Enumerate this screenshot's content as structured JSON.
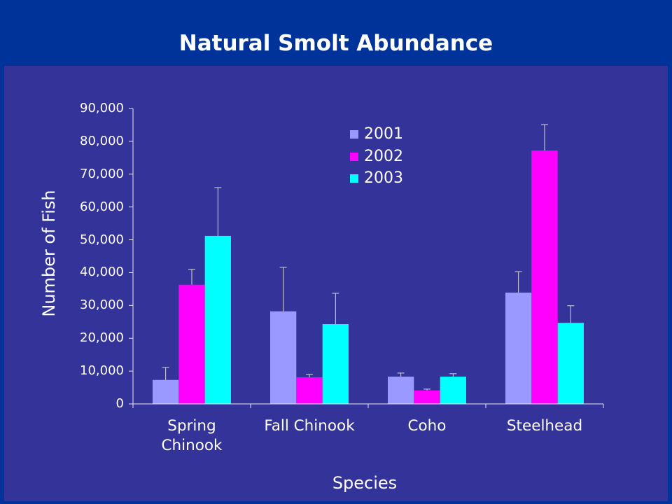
{
  "chart_data": {
    "type": "bar",
    "title": "Natural Smolt Abundance",
    "xlabel": "Species",
    "ylabel": "Number of Fish",
    "categories": [
      "Spring Chinook",
      "Fall Chinook",
      "Coho",
      "Steelhead"
    ],
    "series": [
      {
        "name": "2001",
        "color": "#9999FF",
        "values": [
          7300,
          28200,
          8300,
          33900
        ],
        "error_plus": [
          3800,
          13400,
          1100,
          6400
        ]
      },
      {
        "name": "2002",
        "color": "#FF00FF",
        "values": [
          36300,
          8100,
          4100,
          77200
        ],
        "error_plus": [
          4700,
          900,
          400,
          7900
        ]
      },
      {
        "name": "2003",
        "color": "#00FFFF",
        "values": [
          51200,
          24300,
          8300,
          24700
        ],
        "error_plus": [
          14700,
          9400,
          900,
          5200
        ]
      }
    ],
    "ylim": [
      0,
      90000
    ],
    "yticks": [
      0,
      10000,
      20000,
      30000,
      40000,
      50000,
      60000,
      70000,
      80000,
      90000
    ],
    "ytick_labels": [
      "0",
      "10,000",
      "20,000",
      "30,000",
      "40,000",
      "50,000",
      "60,000",
      "70,000",
      "80,000",
      "90,000"
    ],
    "grid": false,
    "legend": {
      "position": "top-center"
    }
  },
  "colors": {
    "page_background": "#003399",
    "plot_background": "#333399",
    "text": "#FFFFFF",
    "axis": "#E8E8E8",
    "error_bar": "#D8D8D8"
  }
}
